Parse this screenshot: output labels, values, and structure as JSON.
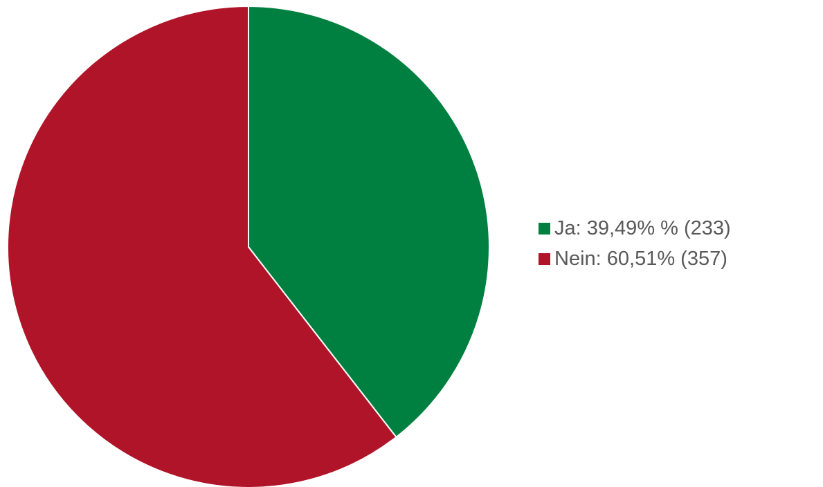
{
  "chart_data": {
    "type": "pie",
    "slices": [
      {
        "label": "Ja: 39,49% % (233)",
        "value": 233,
        "color": "#008040"
      },
      {
        "label": "Nein: 60,51% (357)",
        "value": 357,
        "color": "#B01429"
      }
    ],
    "start_angle_deg": 0,
    "direction": "clockwise",
    "legend_position": "right",
    "slice_border_color": "#ffffff"
  }
}
